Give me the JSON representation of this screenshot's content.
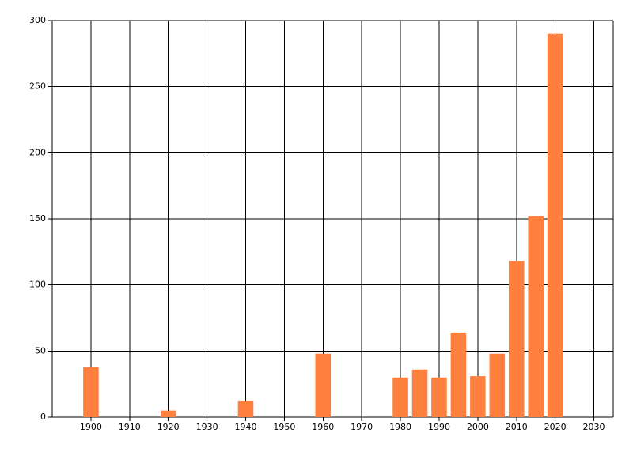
{
  "chart_data": {
    "type": "bar",
    "x": [
      1900,
      1920,
      1940,
      1960,
      1980,
      1985,
      1990,
      1995,
      2000,
      2005,
      2010,
      2015,
      2020
    ],
    "values": [
      38,
      5,
      12,
      48,
      30,
      36,
      30,
      64,
      31,
      48,
      118,
      152,
      290
    ],
    "color": "#ff7f3f",
    "xlim": [
      1890,
      2035
    ],
    "xticks": [
      1900,
      1910,
      1920,
      1930,
      1940,
      1950,
      1960,
      1970,
      1980,
      1990,
      2000,
      2010,
      2020,
      2030
    ],
    "ylim": [
      0,
      300
    ],
    "yticks": [
      0,
      50,
      100,
      150,
      200,
      250,
      300
    ],
    "grid": true
  }
}
